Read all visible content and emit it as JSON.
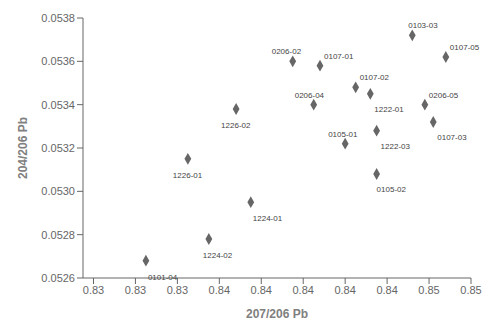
{
  "chart_data": {
    "type": "scatter",
    "xlabel": "207/206 Pb",
    "ylabel": "204/206 Pb",
    "x": [
      0.8325,
      0.8355,
      0.8375,
      0.8345,
      0.8368,
      0.8395,
      0.8408,
      0.8405,
      0.8425,
      0.8432,
      0.842,
      0.8435,
      0.8435,
      0.8452,
      0.8458,
      0.8462,
      0.8468
    ],
    "values": [
      0.05268,
      0.05278,
      0.05295,
      0.05315,
      0.05338,
      0.0536,
      0.05358,
      0.0534,
      0.05348,
      0.05345,
      0.05322,
      0.05328,
      0.05308,
      0.05372,
      0.0534,
      0.05332,
      0.05362
    ],
    "annotations": [
      "0101-04",
      "1224-02",
      "1224-01",
      "1226-01",
      "1226-02",
      "0206-02",
      "0107-01",
      "0206-04",
      "0107-02",
      "1222-01",
      "0105-01",
      "1222-03",
      "0105-02",
      "0103-03",
      "0206-05",
      "0107-03",
      "0107-05"
    ],
    "color": "#666666",
    "marker": "diamond",
    "xlim": [
      0.8295,
      0.848
    ],
    "xticks": [
      0.83,
      {
        "value": 0.832,
        "label": "0.83"
      },
      {
        "value": 0.834,
        "label": "0.83"
      },
      {
        "value": 0.836,
        "label": "0.84"
      },
      {
        "value": 0.838,
        "label": "0.84"
      },
      0.84,
      {
        "value": 0.842,
        "label": "0.84"
      },
      {
        "value": 0.844,
        "label": "0.84"
      },
      {
        "value": 0.846,
        "label": "0.85"
      },
      {
        "value": 0.848,
        "label": "0.85"
      }
    ],
    "ylim": [
      0.0526,
      0.0538
    ],
    "yticks": [
      0.0526,
      0.0528,
      {
        "value": 0.053,
        "label": "0.0530"
      },
      0.0532,
      0.0534,
      0.0536,
      0.0538
    ],
    "grid": false
  }
}
